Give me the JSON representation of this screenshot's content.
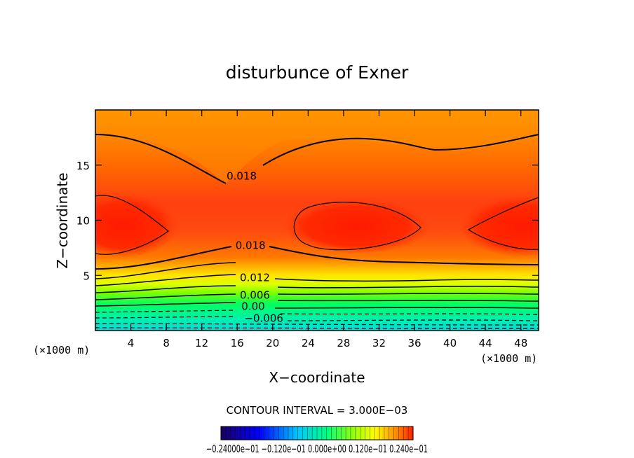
{
  "chart_data": {
    "type": "contour",
    "title": "disturbunce of Exner",
    "xlabel": "X−coordinate",
    "ylabel": "Z−coordinate",
    "x_unit_left": "(×1000 m)",
    "x_unit_right": "(×1000 m)",
    "xlim": [
      0,
      50
    ],
    "ylim": [
      0,
      20
    ],
    "x_ticks": [
      4,
      8,
      12,
      16,
      20,
      24,
      28,
      32,
      36,
      40,
      44,
      48
    ],
    "y_ticks": [
      5,
      10,
      15
    ],
    "contour_interval_text": "CONTOUR INTERVAL = 3.000E−03",
    "contour_labels": [
      {
        "text": "0.018",
        "x": 16.5,
        "z": 14.0
      },
      {
        "text": "0.018",
        "x": 17.5,
        "z": 7.7
      },
      {
        "text": "0.012",
        "x": 18.0,
        "z": 4.8
      },
      {
        "text": "0.006",
        "x": 18.0,
        "z": 3.2
      },
      {
        "text": "0.00",
        "x": 17.8,
        "z": 2.2
      },
      {
        "text": "−0.006",
        "x": 19.0,
        "z": 1.1
      }
    ],
    "colorbar_labels": "−0.24000e−01 −0.120e−01 0.000e+00 0.120e−01 0.240e−01",
    "colorbar_colors": [
      "#1a0080",
      "#0000ff",
      "#00c8ff",
      "#00ff80",
      "#80ff00",
      "#ffff00",
      "#ff9900",
      "#ff2000"
    ],
    "field_colors": [
      "#00e0e0",
      "#00ff80",
      "#66ff00",
      "#ccff00",
      "#ffff00",
      "#ffd000",
      "#ffa000",
      "#ff7a00",
      "#ff5000",
      "#ff2000"
    ]
  }
}
